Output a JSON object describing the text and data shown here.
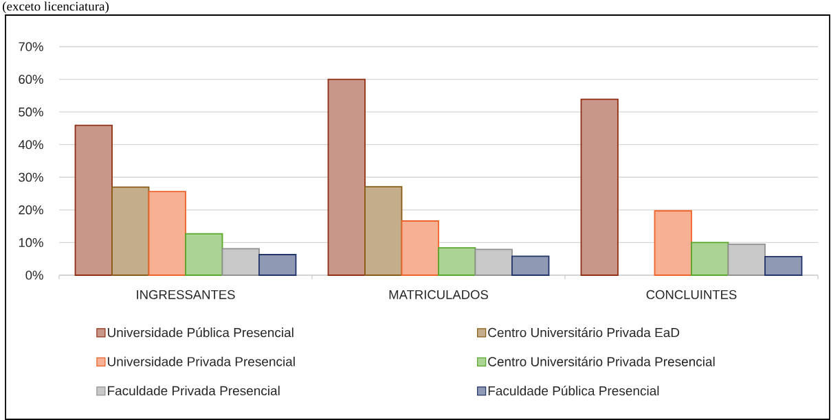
{
  "chart_data": {
    "type": "bar",
    "title": "(exceto licenciatura)",
    "categories": [
      "INGRESSANTES",
      "MATRICULADOS",
      "CONCLUINTES"
    ],
    "series": [
      {
        "name": "Universidade Pública Presencial",
        "color": "#c8978a",
        "values": [
          45.9,
          60.0,
          53.9
        ]
      },
      {
        "name": "Centro Universitário Privada EaD",
        "color": "#c4ad8a",
        "values": [
          27.0,
          27.1,
          null
        ]
      },
      {
        "name": "Universidade Privada Presencial",
        "color": "#f6b194",
        "values": [
          25.6,
          16.6,
          19.7
        ]
      },
      {
        "name": "Centro Universitário Privada Presencial",
        "color": "#abd395",
        "values": [
          12.7,
          8.4,
          10.0
        ]
      },
      {
        "name": "Faculdade Privada Presencial",
        "color": "#c8c8c8",
        "values": [
          8.1,
          7.9,
          9.5
        ]
      },
      {
        "name": "Faculdade Pública Presencial",
        "color": "#9099b4",
        "values": [
          6.3,
          5.8,
          5.7
        ]
      }
    ],
    "ylim": [
      0,
      70
    ],
    "yticks": [
      {
        "value": 0,
        "label": "0%"
      },
      {
        "value": 10,
        "label": "10%"
      },
      {
        "value": 20,
        "label": "20%"
      },
      {
        "value": 30,
        "label": "30%"
      },
      {
        "value": 40,
        "label": "40%"
      },
      {
        "value": 50,
        "label": "50%"
      },
      {
        "value": 60,
        "label": "60%"
      },
      {
        "value": 70,
        "label": "70%"
      }
    ],
    "grid": "y",
    "legend": "bottom"
  }
}
